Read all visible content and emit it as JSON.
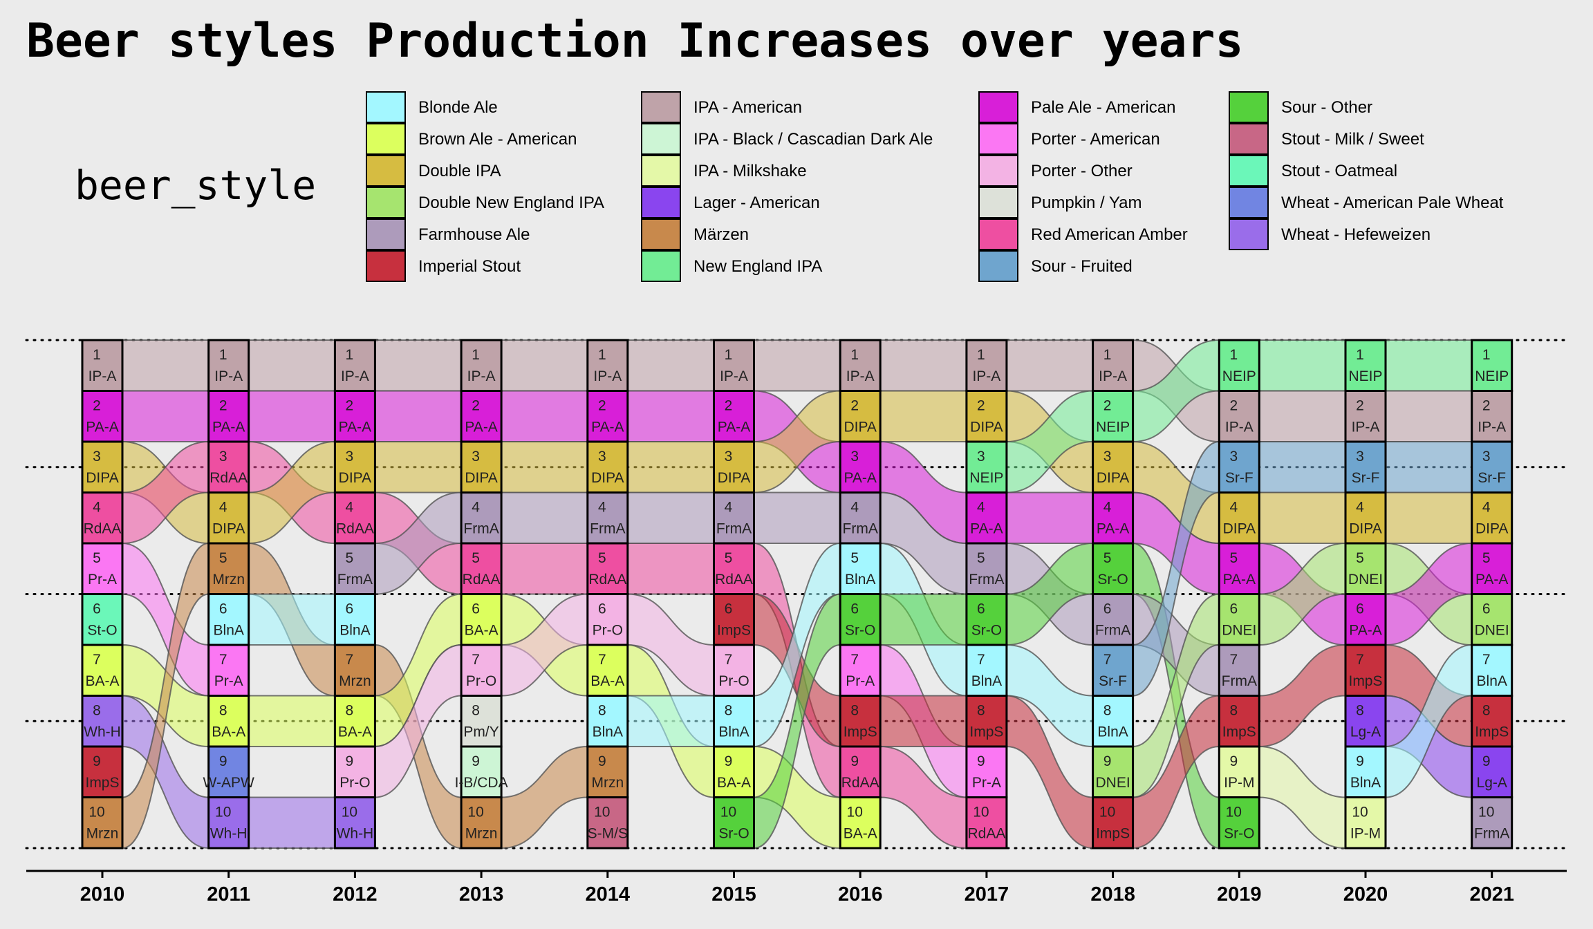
{
  "chart_data": {
    "type": "alluvial",
    "title": "Beer styles Production Increases over years",
    "legend_title": "beer_style",
    "xlabel": "",
    "ylabel": "",
    "years": [
      "2010",
      "2011",
      "2012",
      "2013",
      "2014",
      "2015",
      "2016",
      "2017",
      "2018",
      "2019",
      "2020",
      "2021"
    ],
    "styles": [
      {
        "name": "Blonde Ale",
        "abbr": "BlnA",
        "color": "#a3f7ff"
      },
      {
        "name": "Brown Ale - American",
        "abbr": "BA-A",
        "color": "#dcff5e"
      },
      {
        "name": "Double IPA",
        "abbr": "DIPA",
        "color": "#d6bc41"
      },
      {
        "name": "Double New England IPA",
        "abbr": "DNEI",
        "color": "#a6e46f"
      },
      {
        "name": "Farmhouse Ale",
        "abbr": "FrmA",
        "color": "#ad9bbb"
      },
      {
        "name": "Imperial Stout",
        "abbr": "ImpS",
        "color": "#c7303e"
      },
      {
        "name": "IPA - American",
        "abbr": "IP-A",
        "color": "#bfa3a9"
      },
      {
        "name": "IPA - Black / Cascadian Dark Ale",
        "abbr": "I-B/CDA",
        "color": "#cdf5d5"
      },
      {
        "name": "IPA - Milkshake",
        "abbr": "IP-M",
        "color": "#e4f8a8"
      },
      {
        "name": "Lager - American",
        "abbr": "Lg-A",
        "color": "#8a45ef"
      },
      {
        "name": "Märzen",
        "abbr": "Mrzn",
        "color": "#c8894c"
      },
      {
        "name": "New England IPA",
        "abbr": "NEIP",
        "color": "#72ec95"
      },
      {
        "name": "Pale Ale - American",
        "abbr": "PA-A",
        "color": "#d81fd8"
      },
      {
        "name": "Porter - American",
        "abbr": "Pr-A",
        "color": "#fb77f3"
      },
      {
        "name": "Porter - Other",
        "abbr": "Pr-O",
        "color": "#f3b3e4"
      },
      {
        "name": "Pumpkin / Yam",
        "abbr": "Pm/Y",
        "color": "#dde1d9"
      },
      {
        "name": "Red American Amber",
        "abbr": "RdAA",
        "color": "#ee4fa1"
      },
      {
        "name": "Sour - Fruited",
        "abbr": "Sr-F",
        "color": "#6fa5ce"
      },
      {
        "name": "Sour - Other",
        "abbr": "Sr-O",
        "color": "#55d13c"
      },
      {
        "name": "Stout - Milk / Sweet",
        "abbr": "S-M/S",
        "color": "#c86786"
      },
      {
        "name": "Stout - Oatmeal",
        "abbr": "St-O",
        "color": "#6bf7b9"
      },
      {
        "name": "Wheat  - American Pale Wheat",
        "abbr": "W-APW",
        "color": "#7185e2"
      },
      {
        "name": "Wheat  - Hefeweizen",
        "abbr": "Wh-H",
        "color": "#9a6dea"
      }
    ],
    "rankings": {
      "2010": [
        "IP-A",
        "PA-A",
        "DIPA",
        "RdAA",
        "Pr-A",
        "St-O",
        "BA-A",
        "Wh-H",
        "ImpS",
        "Mrzn"
      ],
      "2011": [
        "IP-A",
        "PA-A",
        "RdAA",
        "DIPA",
        "Mrzn",
        "BlnA",
        "Pr-A",
        "BA-A",
        "W-APW",
        "Wh-H"
      ],
      "2012": [
        "IP-A",
        "PA-A",
        "DIPA",
        "RdAA",
        "FrmA",
        "BlnA",
        "Mrzn",
        "BA-A",
        "Pr-O",
        "Wh-H"
      ],
      "2013": [
        "IP-A",
        "PA-A",
        "DIPA",
        "FrmA",
        "RdAA",
        "BA-A",
        "Pr-O",
        "Pm/Y",
        "I-B/CDA",
        "Mrzn"
      ],
      "2014": [
        "IP-A",
        "PA-A",
        "DIPA",
        "FrmA",
        "RdAA",
        "Pr-O",
        "BA-A",
        "BlnA",
        "Mrzn",
        "S-M/S"
      ],
      "2015": [
        "IP-A",
        "PA-A",
        "DIPA",
        "FrmA",
        "RdAA",
        "ImpS",
        "Pr-O",
        "BlnA",
        "BA-A",
        "Sr-O"
      ],
      "2016": [
        "IP-A",
        "DIPA",
        "PA-A",
        "FrmA",
        "BlnA",
        "Sr-O",
        "Pr-A",
        "ImpS",
        "RdAA",
        "BA-A"
      ],
      "2017": [
        "IP-A",
        "DIPA",
        "NEIP",
        "PA-A",
        "FrmA",
        "Sr-O",
        "BlnA",
        "ImpS",
        "Pr-A",
        "RdAA"
      ],
      "2018": [
        "IP-A",
        "NEIP",
        "DIPA",
        "PA-A",
        "Sr-O",
        "FrmA",
        "Sr-F",
        "BlnA",
        "DNEI",
        "ImpS"
      ],
      "2019": [
        "NEIP",
        "IP-A",
        "Sr-F",
        "DIPA",
        "PA-A",
        "DNEI",
        "FrmA",
        "ImpS",
        "IP-M",
        "Sr-O"
      ],
      "2020": [
        "NEIP",
        "IP-A",
        "Sr-F",
        "DIPA",
        "DNEI",
        "PA-A",
        "ImpS",
        "Lg-A",
        "BlnA",
        "IP-M"
      ],
      "2021": [
        "NEIP",
        "IP-A",
        "Sr-F",
        "DIPA",
        "PA-A",
        "DNEI",
        "BlnA",
        "ImpS",
        "Lg-A",
        "FrmA"
      ]
    }
  }
}
